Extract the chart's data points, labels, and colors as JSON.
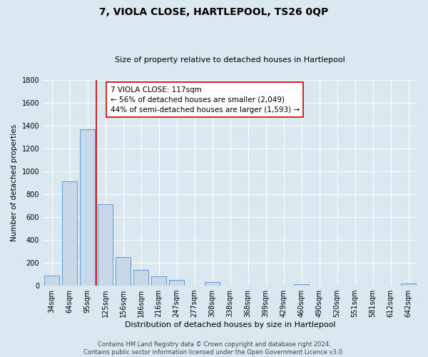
{
  "title": "7, VIOLA CLOSE, HARTLEPOOL, TS26 0QP",
  "subtitle": "Size of property relative to detached houses in Hartlepool",
  "xlabel": "Distribution of detached houses by size in Hartlepool",
  "ylabel": "Number of detached properties",
  "categories": [
    "34sqm",
    "64sqm",
    "95sqm",
    "125sqm",
    "156sqm",
    "186sqm",
    "216sqm",
    "247sqm",
    "277sqm",
    "308sqm",
    "338sqm",
    "368sqm",
    "399sqm",
    "429sqm",
    "460sqm",
    "490sqm",
    "520sqm",
    "551sqm",
    "581sqm",
    "612sqm",
    "642sqm"
  ],
  "values": [
    90,
    910,
    1370,
    710,
    250,
    140,
    80,
    50,
    0,
    30,
    0,
    0,
    0,
    0,
    15,
    0,
    0,
    0,
    0,
    0,
    20
  ],
  "bar_color": "#c8d8e8",
  "bar_edge_color": "#5b9bd5",
  "vline_idx": 2.5,
  "vline_color": "#cc0000",
  "annotation_title": "7 VIOLA CLOSE: 117sqm",
  "annotation_line1": "← 56% of detached houses are smaller (2,049)",
  "annotation_line2": "44% of semi-detached houses are larger (1,593) →",
  "annotation_box_color": "#ffffff",
  "annotation_box_edge": "#cc0000",
  "ylim": [
    0,
    1800
  ],
  "yticks": [
    0,
    200,
    400,
    600,
    800,
    1000,
    1200,
    1400,
    1600,
    1800
  ],
  "footer_line1": "Contains HM Land Registry data © Crown copyright and database right 2024.",
  "footer_line2": "Contains public sector information licensed under the Open Government Licence v3.0.",
  "bg_color": "#dce8f0",
  "plot_bg_color": "#dce8f0",
  "grid_color": "#ffffff",
  "title_fontsize": 10,
  "subtitle_fontsize": 8,
  "xlabel_fontsize": 8,
  "ylabel_fontsize": 7.5,
  "tick_fontsize": 7,
  "footer_fontsize": 6,
  "annotation_fontsize": 7.5
}
